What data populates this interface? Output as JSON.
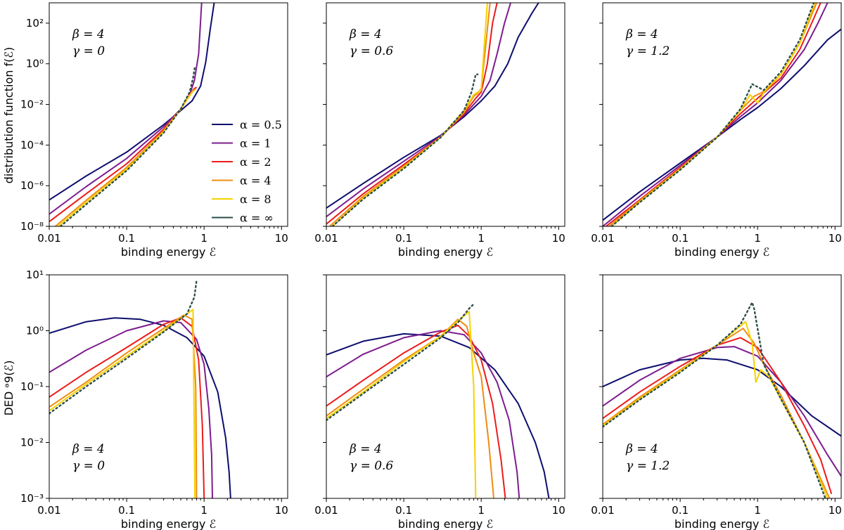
{
  "figure": {
    "row_ylabels": [
      "distribution function f(ℰ)",
      "DED ᵊ9(ℰ)"
    ],
    "xlabel": "binding energy ℰ"
  },
  "legend": {
    "entries": [
      "α = 0.5",
      "α = 1",
      "α = 2",
      "α = 4",
      "α = 8",
      "α = ∞"
    ]
  },
  "colors": {
    "alpha_0.5": "#0d0d6e",
    "alpha_1": "#7d1c8e",
    "alpha_2": "#ec1b1b",
    "alpha_4": "#f08c10",
    "alpha_8": "#f5d200",
    "alpha_inf": "#2d4f4a"
  },
  "chart_data": [
    {
      "type": "line",
      "panel": "top-left",
      "row": "f",
      "annotation": [
        "β = 4",
        "γ = 0"
      ],
      "xscale": "log",
      "yscale": "log",
      "xlim": [
        0.01,
        12
      ],
      "ylim": [
        1e-08,
        1000
      ],
      "xticks": [
        "0.01",
        "0.1",
        "1",
        "10"
      ],
      "yticks": [
        "10⁻⁸",
        "10⁻⁶",
        "10⁻⁴",
        "10⁻²",
        "10⁰",
        "10²"
      ],
      "series": [
        {
          "name": "α = 0.5",
          "x": [
            0.01,
            0.03,
            0.1,
            0.3,
            0.5,
            0.7,
            0.9,
            1.05,
            1.2,
            1.35
          ],
          "y": [
            2e-07,
            3e-06,
            4.5e-05,
            0.001,
            0.005,
            0.015,
            0.08,
            1.2,
            50,
            1000
          ]
        },
        {
          "name": "α = 1",
          "x": [
            0.01,
            0.03,
            0.1,
            0.3,
            0.5,
            0.65,
            0.75,
            0.85,
            0.93
          ],
          "y": [
            4e-08,
            9e-07,
            2.2e-05,
            0.0008,
            0.006,
            0.03,
            0.15,
            3,
            1000
          ]
        },
        {
          "name": "α = 2",
          "x": [
            0.01,
            0.03,
            0.1,
            0.3,
            0.5,
            0.65,
            0.75,
            0.8
          ],
          "y": [
            1.7e-08,
            4e-07,
            1.2e-05,
            0.0006,
            0.006,
            0.03,
            0.06,
            0.07
          ]
        },
        {
          "name": "α = 4",
          "x": [
            0.012,
            0.03,
            0.1,
            0.3,
            0.5,
            0.7,
            0.78
          ],
          "y": [
            1e-08,
            1.9e-07,
            8e-06,
            0.0005,
            0.006,
            0.04,
            0.06
          ]
        },
        {
          "name": "α = 8",
          "x": [
            0.013,
            0.03,
            0.1,
            0.3,
            0.5,
            0.7,
            0.75
          ],
          "y": [
            1e-08,
            1.5e-07,
            6.5e-06,
            0.00045,
            0.006,
            0.04,
            0.05
          ]
        },
        {
          "name": "α = ∞",
          "x": [
            0.014,
            0.03,
            0.1,
            0.3,
            0.5,
            0.65,
            0.72,
            0.76
          ],
          "y": [
            1e-08,
            1.2e-07,
            5.5e-06,
            0.0004,
            0.006,
            0.04,
            0.2,
            0.7
          ]
        }
      ]
    },
    {
      "type": "line",
      "panel": "top-middle",
      "row": "f",
      "annotation": [
        "β = 4",
        "γ = 0.6"
      ],
      "xscale": "log",
      "yscale": "log",
      "xlim": [
        0.01,
        12
      ],
      "ylim": [
        1e-08,
        1000
      ],
      "xticks": [
        "0.01",
        "0.1",
        "1",
        "10"
      ],
      "series": [
        {
          "name": "α = 0.5",
          "x": [
            0.01,
            0.03,
            0.1,
            0.3,
            0.6,
            1,
            1.5,
            2.2,
            3,
            4.5,
            5.5
          ],
          "y": [
            8e-08,
            1.3e-06,
            2.5e-05,
            0.0003,
            0.0025,
            0.015,
            0.08,
            1,
            20,
            300,
            1000
          ]
        },
        {
          "name": "α = 1",
          "x": [
            0.01,
            0.03,
            0.1,
            0.3,
            0.6,
            1,
            1.3,
            1.6,
            2,
            2.4
          ],
          "y": [
            3e-08,
            7e-07,
            1.6e-05,
            0.00028,
            0.003,
            0.025,
            0.15,
            3,
            100,
            1000
          ]
        },
        {
          "name": "α = 2",
          "x": [
            0.01,
            0.03,
            0.1,
            0.3,
            0.6,
            0.85,
            1,
            1.2,
            1.4,
            1.6
          ],
          "y": [
            1.3e-08,
            4e-07,
            1.1e-05,
            0.00025,
            0.0035,
            0.02,
            0.04,
            1,
            100,
            1000
          ]
        },
        {
          "name": "α = 4",
          "x": [
            0.011,
            0.03,
            0.1,
            0.3,
            0.6,
            0.8,
            0.9,
            1,
            1.15,
            1.3
          ],
          "y": [
            1e-08,
            3e-07,
            9e-06,
            0.00025,
            0.004,
            0.025,
            0.035,
            0.06,
            10,
            1000
          ]
        },
        {
          "name": "α = 8",
          "x": [
            0.012,
            0.03,
            0.1,
            0.3,
            0.6,
            0.8,
            0.9,
            1,
            1.1,
            1.2
          ],
          "y": [
            1e-08,
            2.5e-07,
            8e-06,
            0.00025,
            0.005,
            0.03,
            0.04,
            0.05,
            10,
            1000
          ]
        },
        {
          "name": "α = ∞",
          "x": [
            0.012,
            0.03,
            0.1,
            0.3,
            0.6,
            0.75,
            0.85,
            0.9
          ],
          "y": [
            1e-08,
            2.2e-07,
            7e-06,
            0.00024,
            0.005,
            0.04,
            0.3,
            0.3
          ]
        }
      ]
    },
    {
      "type": "line",
      "panel": "top-right",
      "row": "f",
      "annotation": [
        "β = 4",
        "γ = 1.2"
      ],
      "xscale": "log",
      "yscale": "log",
      "xlim": [
        0.01,
        12
      ],
      "ylim": [
        1e-08,
        1000
      ],
      "xticks": [
        "0.01",
        "0.1",
        "1",
        "10"
      ],
      "series": [
        {
          "name": "α = 0.5",
          "x": [
            0.01,
            0.03,
            0.1,
            0.3,
            0.6,
            1,
            2,
            4,
            8,
            12
          ],
          "y": [
            2e-08,
            5e-07,
            1.3e-05,
            0.00025,
            0.0018,
            0.007,
            0.06,
            0.8,
            15.0,
            50.0
          ]
        },
        {
          "name": "α = 1",
          "x": [
            0.01,
            0.03,
            0.1,
            0.3,
            0.6,
            1,
            2,
            4,
            6,
            8
          ],
          "y": [
            1e-08,
            3e-07,
            1e-05,
            0.00025,
            0.0025,
            0.012,
            0.15,
            5,
            100,
            1000
          ]
        },
        {
          "name": "α = 2",
          "x": [
            0.011,
            0.03,
            0.1,
            0.3,
            0.6,
            1,
            2,
            3.5,
            5,
            6.5
          ],
          "y": [
            1e-08,
            2e-07,
            8e-06,
            0.00025,
            0.0035,
            0.02,
            0.2,
            5,
            100,
            1000
          ]
        },
        {
          "name": "α = 4",
          "x": [
            0.012,
            0.03,
            0.1,
            0.3,
            0.6,
            0.9,
            1.3,
            2,
            3.5,
            5.8
          ],
          "y": [
            1e-08,
            1.8e-07,
            7e-06,
            0.00025,
            0.005,
            0.025,
            0.05,
            0.3,
            10,
            1000
          ]
        },
        {
          "name": "α = 8",
          "x": [
            0.013,
            0.03,
            0.1,
            0.3,
            0.6,
            0.8,
            1,
            1.3,
            2,
            3.5,
            5.5
          ],
          "y": [
            1e-08,
            1.6e-07,
            6.5e-06,
            0.00025,
            0.005,
            0.03,
            0.012,
            0.06,
            0.3,
            10,
            1000
          ]
        },
        {
          "name": "α = ∞",
          "x": [
            0.013,
            0.03,
            0.1,
            0.3,
            0.6,
            0.85,
            1.2,
            2,
            3.5,
            5.3
          ],
          "y": [
            1e-08,
            1.5e-07,
            6e-06,
            0.00024,
            0.006,
            0.1,
            0.05,
            0.4,
            15,
            1000
          ]
        }
      ]
    },
    {
      "type": "line",
      "panel": "bottom-left",
      "row": "DED",
      "annotation": [
        "β = 4",
        "γ = 0"
      ],
      "xscale": "log",
      "yscale": "log",
      "xlim": [
        0.01,
        12
      ],
      "ylim": [
        0.001,
        10
      ],
      "xticks": [
        "0.01",
        "0.1",
        "1",
        "10"
      ],
      "yticks": [
        "10⁻³",
        "10⁻²",
        "10⁻¹",
        "10⁰",
        "10¹"
      ],
      "series": [
        {
          "name": "α = 0.5",
          "x": [
            0.01,
            0.03,
            0.07,
            0.15,
            0.3,
            0.6,
            1,
            1.5,
            1.9,
            2.1,
            2.2
          ],
          "y": [
            0.9,
            1.45,
            1.7,
            1.6,
            1.25,
            0.75,
            0.35,
            0.08,
            0.012,
            0.003,
            0.001
          ]
        },
        {
          "name": "α = 1",
          "x": [
            0.01,
            0.03,
            0.1,
            0.3,
            0.5,
            0.8,
            1,
            1.15,
            1.25,
            1.28
          ],
          "y": [
            0.18,
            0.45,
            1,
            1.5,
            1.4,
            0.7,
            0.25,
            0.04,
            0.006,
            0.001
          ]
        },
        {
          "name": "α = 2",
          "x": [
            0.01,
            0.03,
            0.1,
            0.3,
            0.5,
            0.7,
            0.85,
            0.95,
            1
          ],
          "y": [
            0.065,
            0.18,
            0.5,
            1.3,
            1.7,
            1.2,
            0.3,
            0.02,
            0.001
          ]
        },
        {
          "name": "α = 4",
          "x": [
            0.01,
            0.03,
            0.1,
            0.3,
            0.55,
            0.7,
            0.78,
            0.8
          ],
          "y": [
            0.043,
            0.12,
            0.4,
            1.1,
            1.9,
            1.6,
            0.1,
            0.001
          ]
        },
        {
          "name": "α = 8",
          "x": [
            0.01,
            0.03,
            0.1,
            0.3,
            0.6,
            0.72,
            0.76
          ],
          "y": [
            0.037,
            0.11,
            0.35,
            1,
            2,
            2.4,
            0.001
          ]
        },
        {
          "name": "α = ∞",
          "x": [
            0.01,
            0.03,
            0.1,
            0.3,
            0.6,
            0.75,
            0.8
          ],
          "y": [
            0.033,
            0.1,
            0.32,
            0.95,
            2,
            4,
            8
          ]
        }
      ]
    },
    {
      "type": "line",
      "panel": "bottom-middle",
      "row": "DED",
      "annotation": [
        "β = 4",
        "γ = 0.6"
      ],
      "xscale": "log",
      "yscale": "log",
      "xlim": [
        0.01,
        12
      ],
      "ylim": [
        0.001,
        10
      ],
      "xticks": [
        "0.01",
        "0.1",
        "1",
        "10"
      ],
      "series": [
        {
          "name": "α = 0.5",
          "x": [
            0.01,
            0.03,
            0.1,
            0.3,
            0.7,
            1.5,
            3,
            5,
            6.5,
            7.5
          ],
          "y": [
            0.37,
            0.65,
            0.88,
            0.8,
            0.5,
            0.2,
            0.05,
            0.01,
            0.003,
            0.001
          ]
        },
        {
          "name": "α = 1",
          "x": [
            0.01,
            0.03,
            0.1,
            0.3,
            0.6,
            1,
            1.6,
            2.3,
            2.9,
            3.1
          ],
          "y": [
            0.15,
            0.38,
            0.75,
            1,
            0.85,
            0.4,
            0.12,
            0.025,
            0.003,
            0.001
          ]
        },
        {
          "name": "α = 2",
          "x": [
            0.01,
            0.03,
            0.1,
            0.3,
            0.5,
            0.7,
            1,
            1.4,
            1.8,
            2.05
          ],
          "y": [
            0.045,
            0.13,
            0.4,
            0.95,
            1.25,
            0.8,
            0.3,
            0.05,
            0.005,
            0.001
          ]
        },
        {
          "name": "α = 4",
          "x": [
            0.01,
            0.03,
            0.1,
            0.3,
            0.5,
            0.65,
            0.8,
            1,
            1.25,
            1.45
          ],
          "y": [
            0.03,
            0.09,
            0.3,
            0.8,
            1.6,
            1.2,
            0.4,
            0.15,
            0.01,
            0.001
          ]
        },
        {
          "name": "α = 8",
          "x": [
            0.01,
            0.03,
            0.1,
            0.3,
            0.5,
            0.7,
            0.8,
            0.85
          ],
          "y": [
            0.027,
            0.08,
            0.28,
            0.8,
            1.5,
            2.2,
            0.1,
            0.001
          ]
        },
        {
          "name": "α = ∞",
          "x": [
            0.01,
            0.03,
            0.1,
            0.3,
            0.5,
            0.7,
            0.8
          ],
          "y": [
            0.025,
            0.075,
            0.25,
            0.75,
            1.4,
            2.5,
            3
          ]
        }
      ]
    },
    {
      "type": "line",
      "panel": "bottom-right",
      "row": "DED",
      "annotation": [
        "β = 4",
        "γ = 1.2"
      ],
      "xscale": "log",
      "yscale": "log",
      "xlim": [
        0.01,
        12
      ],
      "ylim": [
        0.001,
        10
      ],
      "xticks": [
        "0.01",
        "0.1",
        "1",
        "10"
      ],
      "series": [
        {
          "name": "α = 0.5",
          "x": [
            0.01,
            0.03,
            0.1,
            0.2,
            0.4,
            1,
            2,
            5,
            12
          ],
          "y": [
            0.1,
            0.2,
            0.3,
            0.32,
            0.3,
            0.2,
            0.1,
            0.03,
            0.013
          ]
        },
        {
          "name": "α = 1",
          "x": [
            0.01,
            0.03,
            0.1,
            0.3,
            0.5,
            1,
            2,
            4,
            8,
            12
          ],
          "y": [
            0.045,
            0.13,
            0.32,
            0.5,
            0.52,
            0.35,
            0.12,
            0.03,
            0.006,
            0.0025
          ]
        },
        {
          "name": "α = 2",
          "x": [
            0.01,
            0.03,
            0.1,
            0.3,
            0.6,
            1,
            2,
            4,
            6.5,
            9
          ],
          "y": [
            0.027,
            0.08,
            0.23,
            0.55,
            0.75,
            0.5,
            0.12,
            0.02,
            0.005,
            0.0012
          ]
        },
        {
          "name": "α = 4",
          "x": [
            0.01,
            0.03,
            0.1,
            0.3,
            0.65,
            0.9,
            1.2,
            2,
            4,
            8.5
          ],
          "y": [
            0.021,
            0.065,
            0.2,
            0.55,
            1.1,
            0.6,
            0.25,
            0.07,
            0.01,
            0.001
          ]
        },
        {
          "name": "α = 8",
          "x": [
            0.01,
            0.03,
            0.1,
            0.3,
            0.7,
            0.85,
            0.95,
            1.1,
            1.4,
            2,
            4,
            8
          ],
          "y": [
            0.02,
            0.06,
            0.19,
            0.55,
            1.45,
            0.6,
            0.12,
            0.2,
            0.15,
            0.06,
            0.01,
            0.001
          ]
        },
        {
          "name": "α = ∞",
          "x": [
            0.01,
            0.03,
            0.1,
            0.3,
            0.6,
            0.85,
            0.9,
            1.2,
            2,
            4,
            7.5
          ],
          "y": [
            0.019,
            0.058,
            0.18,
            0.55,
            1.3,
            3.2,
            2.5,
            0.25,
            0.06,
            0.01,
            0.001
          ]
        }
      ]
    }
  ]
}
